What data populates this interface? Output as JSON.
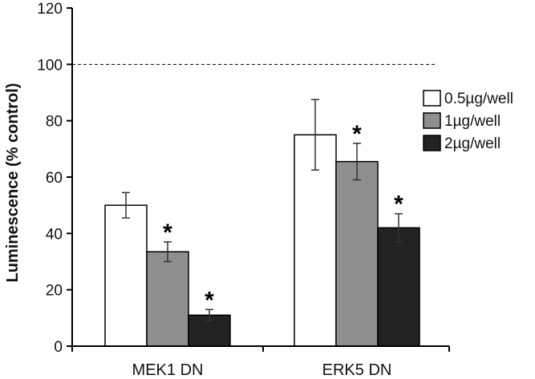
{
  "chart_data": {
    "type": "bar",
    "title": "",
    "xlabel": "",
    "ylabel": "Luminescence (% control)",
    "ylim": [
      0,
      120
    ],
    "yticks": [
      "0",
      "20",
      "40",
      "60",
      "80",
      "100",
      "120"
    ],
    "categories": [
      "MEK1 DN",
      "ERK5 DN"
    ],
    "series": [
      {
        "name": "0.5µg/well",
        "color": "#ffffff",
        "values": [
          50,
          75
        ],
        "errors": [
          4.5,
          12.5
        ],
        "significant": [
          false,
          false
        ]
      },
      {
        "name": "1µg/well",
        "color": "#8f8f8f",
        "values": [
          33.5,
          65.5
        ],
        "errors": [
          3.5,
          6.5
        ],
        "significant": [
          true,
          true
        ]
      },
      {
        "name": "2µg/well",
        "color": "#222222",
        "values": [
          11,
          42
        ],
        "errors": [
          2,
          5
        ],
        "significant": [
          true,
          true
        ]
      }
    ],
    "reference_line": {
      "value": 100,
      "style": "dashed"
    },
    "significance_marker": "*",
    "legend": "right",
    "grid": false
  }
}
